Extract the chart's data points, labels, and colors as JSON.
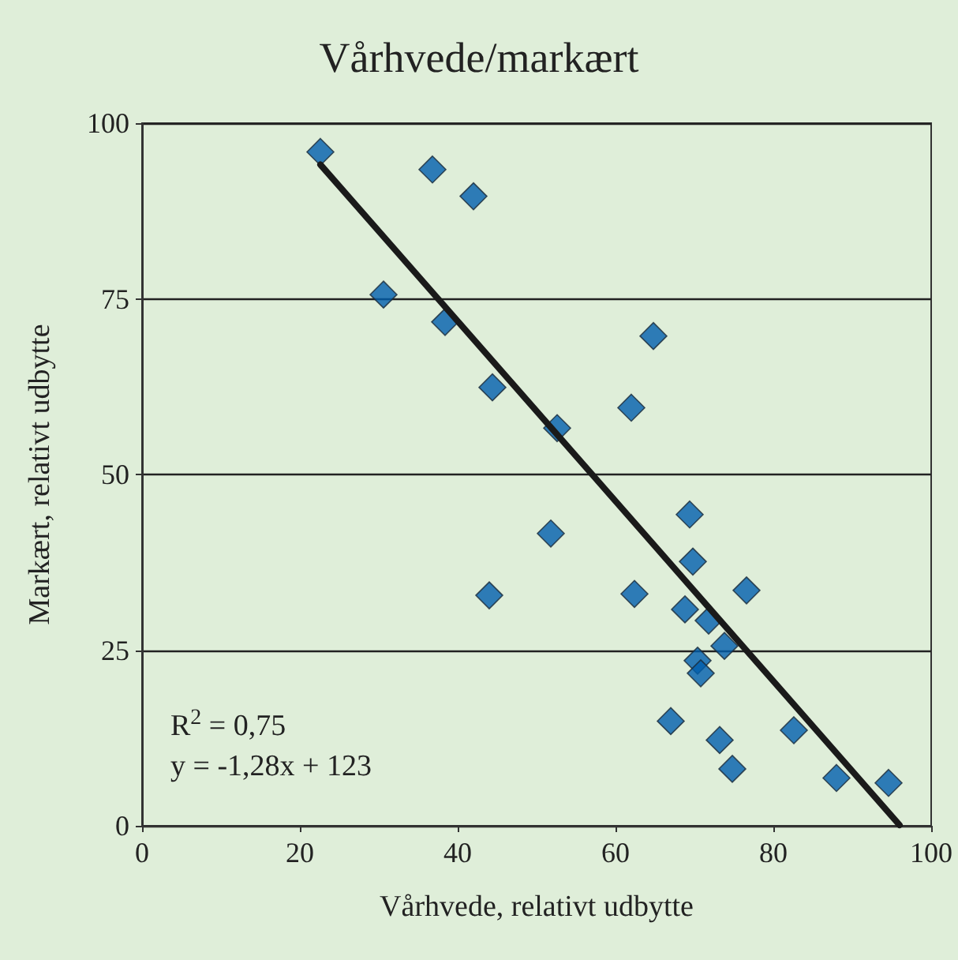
{
  "chart_data": {
    "type": "scatter",
    "title": "Vårhvede/markært",
    "xlabel": "Vårhvede, relativt udbytte",
    "ylabel": "Markært, relativt udbytte",
    "xlim": [
      0,
      100
    ],
    "xticks": [
      0,
      20,
      40,
      60,
      80,
      100
    ],
    "ylim": [
      0,
      100
    ],
    "yticks": [
      0,
      25,
      50,
      75,
      100
    ],
    "grid": "y",
    "marker": "diamond",
    "annotations": [
      "R$^{2}$ = 0,75",
      "y = -1,28x + 123"
    ],
    "series": [
      {
        "color": "#005eac",
        "x": [
          22.6,
          36.8,
          42,
          30.6,
          38.4,
          44.4,
          52.6,
          51.8,
          44,
          64.8,
          62,
          69.4,
          69.8,
          62.4,
          76.6,
          68.8,
          71.8,
          73.8,
          70.4,
          70.8,
          67,
          73.2,
          74.8,
          82.6,
          88,
          94.6
        ],
        "values": [
          95.9,
          93.4,
          89.6,
          75.6,
          71.7,
          62.4,
          56.6,
          41.6,
          32.8,
          69.7,
          59.5,
          44.3,
          37.6,
          33,
          33.5,
          30.8,
          29.2,
          25.6,
          23.5,
          21.7,
          14.9,
          12.2,
          8.1,
          13.6,
          6.8,
          6.1
        ]
      },
      {
        "type": "line",
        "color": "#1a1a1a",
        "marker": "none",
        "x": [
          22.6,
          96
        ],
        "values": [
          94.1,
          0.1
        ]
      }
    ]
  }
}
